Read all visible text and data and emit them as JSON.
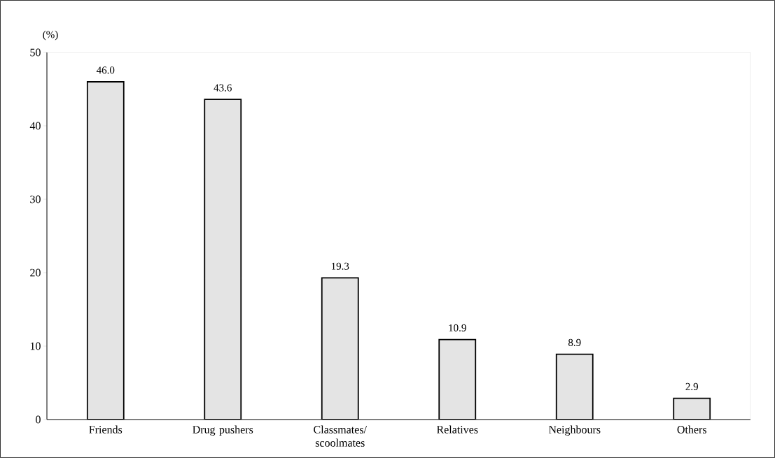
{
  "chart_data": {
    "type": "bar",
    "ylabel": "(%)",
    "categories": [
      "Friends",
      "Drug pushers",
      "Classmates/ scoolmates",
      "Relatives",
      "Neighbours",
      "Others"
    ],
    "values": [
      46.0,
      43.6,
      19.3,
      10.9,
      8.9,
      2.9
    ],
    "color": "#e4e4e4",
    "ylim": [
      0,
      50
    ],
    "yticks": [
      0,
      10,
      20,
      30,
      40,
      50
    ],
    "value_labels": [
      "46.0",
      "43.6",
      "19.3",
      "10.9",
      "8.9",
      "2.9"
    ]
  }
}
